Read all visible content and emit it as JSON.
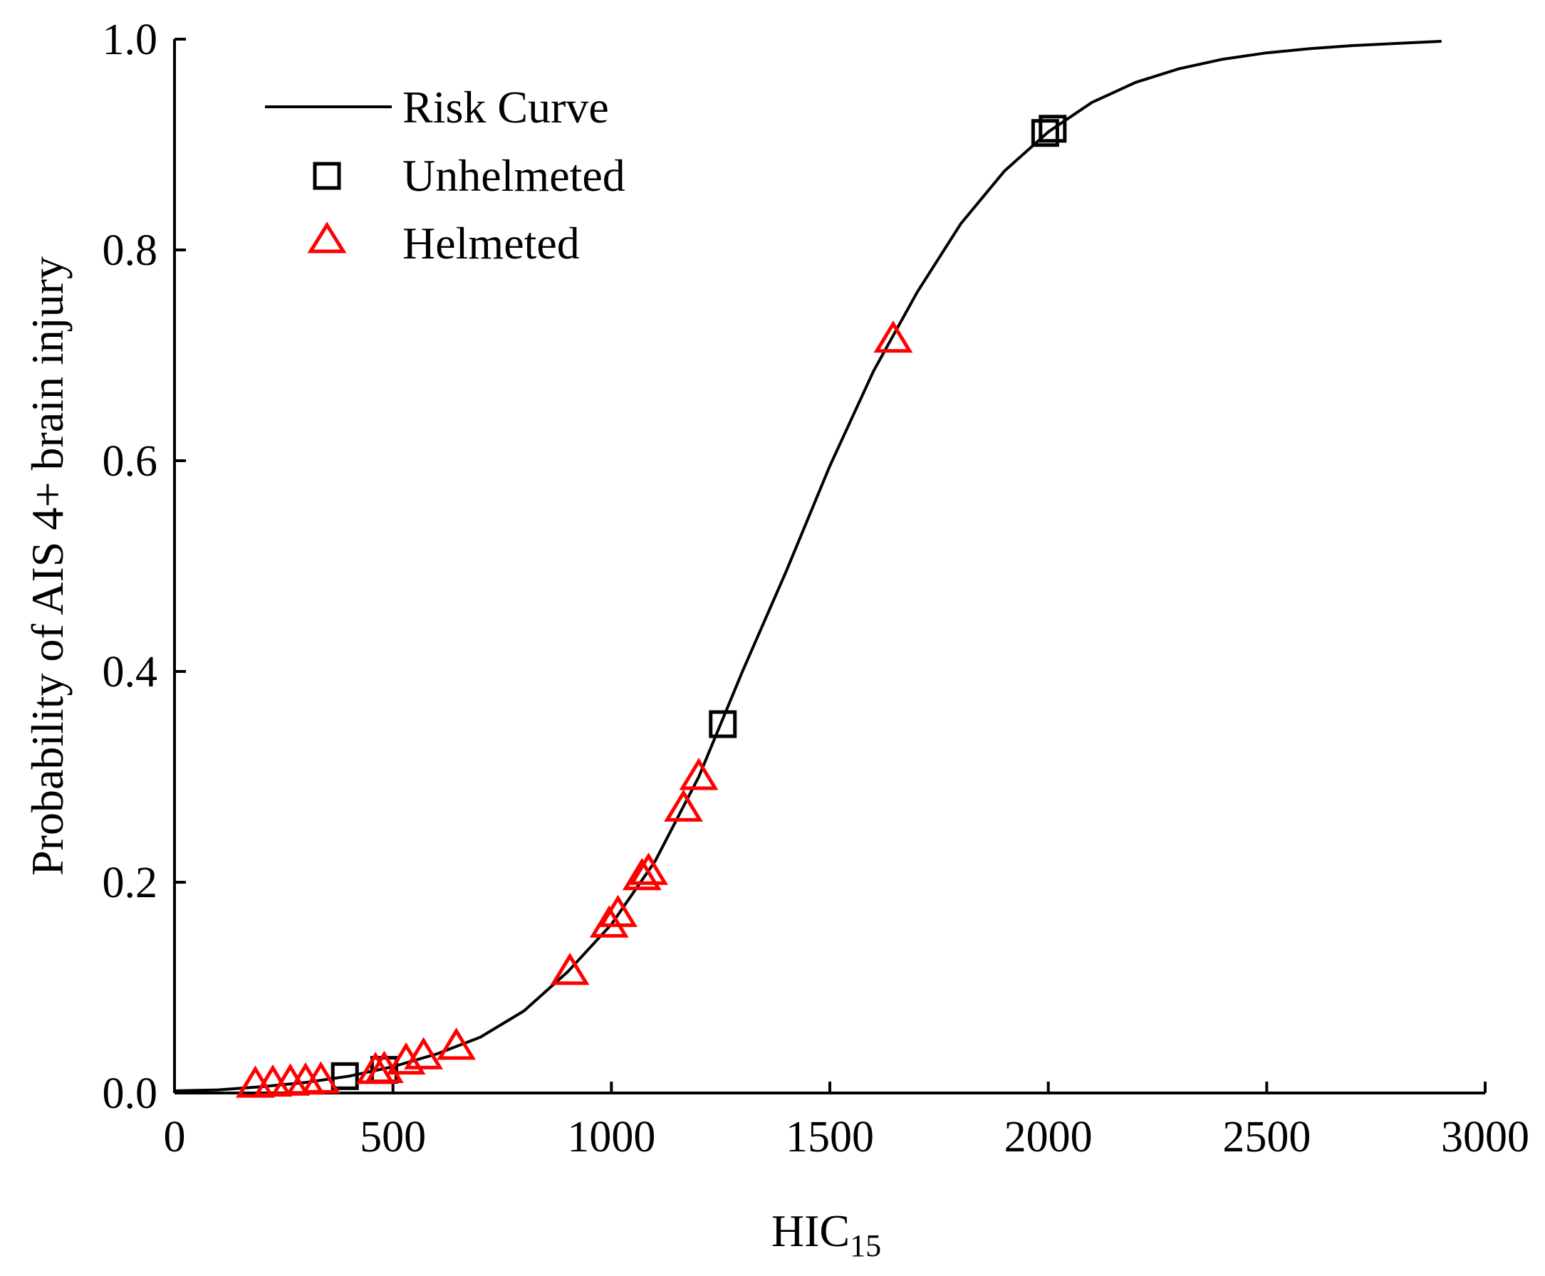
{
  "chart_data": {
    "type": "scatter",
    "xlabel": "HIC",
    "xlabel_subscript": "15",
    "ylabel": "Probability of AIS 4+ brain injury",
    "xlim": [
      0,
      3000
    ],
    "ylim": [
      0,
      1.0
    ],
    "xticks": [
      0,
      500,
      1000,
      1500,
      2000,
      2500,
      3000
    ],
    "xtick_labels": [
      "0",
      "500",
      "1000",
      "1500",
      "2000",
      "2500",
      "3000"
    ],
    "yticks": [
      0,
      0.2,
      0.4,
      0.6,
      0.8,
      1.0
    ],
    "ytick_labels": [
      "0.0",
      "0.2",
      "0.4",
      "0.6",
      "0.8",
      "1.0"
    ],
    "grid": false,
    "legend_position": "top-left",
    "series": [
      {
        "name": "Risk Curve",
        "kind": "line",
        "color": "#000000",
        "points": [
          [
            0,
            0.002
          ],
          [
            100,
            0.003
          ],
          [
            200,
            0.006
          ],
          [
            300,
            0.01
          ],
          [
            400,
            0.016
          ],
          [
            500,
            0.025
          ],
          [
            600,
            0.037
          ],
          [
            700,
            0.053
          ],
          [
            800,
            0.078
          ],
          [
            900,
            0.115
          ],
          [
            1000,
            0.16
          ],
          [
            1100,
            0.22
          ],
          [
            1200,
            0.3
          ],
          [
            1300,
            0.4
          ],
          [
            1400,
            0.495
          ],
          [
            1500,
            0.595
          ],
          [
            1600,
            0.685
          ],
          [
            1700,
            0.76
          ],
          [
            1800,
            0.825
          ],
          [
            1900,
            0.875
          ],
          [
            2000,
            0.912
          ],
          [
            2100,
            0.94
          ],
          [
            2200,
            0.959
          ],
          [
            2300,
            0.972
          ],
          [
            2400,
            0.981
          ],
          [
            2500,
            0.987
          ],
          [
            2600,
            0.991
          ],
          [
            2700,
            0.994
          ],
          [
            2800,
            0.996
          ],
          [
            2900,
            0.998
          ]
        ]
      },
      {
        "name": "Unhelmeted",
        "kind": "marker",
        "marker": "square",
        "color": "#000000",
        "points": [
          [
            390,
            0.016
          ],
          [
            480,
            0.022
          ],
          [
            1255,
            0.35
          ],
          [
            1993,
            0.911
          ],
          [
            2010,
            0.915
          ]
        ]
      },
      {
        "name": "Helmeted",
        "kind": "marker",
        "marker": "triangle",
        "color": "#ff0000",
        "points": [
          [
            185,
            0.008
          ],
          [
            225,
            0.009
          ],
          [
            265,
            0.01
          ],
          [
            300,
            0.011
          ],
          [
            335,
            0.012
          ],
          [
            460,
            0.021
          ],
          [
            480,
            0.022
          ],
          [
            530,
            0.03
          ],
          [
            570,
            0.035
          ],
          [
            645,
            0.044
          ],
          [
            905,
            0.115
          ],
          [
            995,
            0.16
          ],
          [
            1015,
            0.17
          ],
          [
            1070,
            0.205
          ],
          [
            1085,
            0.21
          ],
          [
            1165,
            0.27
          ],
          [
            1200,
            0.3
          ],
          [
            1645,
            0.715
          ]
        ]
      }
    ]
  }
}
